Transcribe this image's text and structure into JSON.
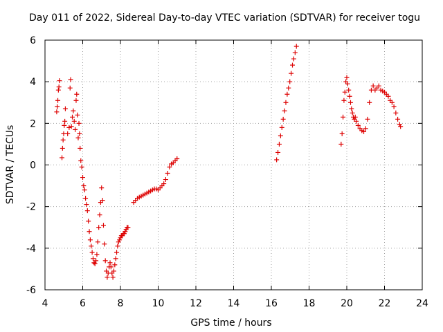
{
  "chart_data": {
    "type": "scatter",
    "title": "Day 011 of 2022, Sidereal Day-to-day VTEC variation (SDTVAR) for receiver togu",
    "xlabel": "GPS time / hours",
    "ylabel": "SDTVAR / TECUs",
    "xlim": [
      4,
      24
    ],
    "ylim": [
      -6,
      6
    ],
    "xticks": [
      4,
      6,
      8,
      10,
      12,
      14,
      16,
      18,
      20,
      22,
      24
    ],
    "yticks": [
      -6,
      -4,
      -2,
      0,
      2,
      4,
      6
    ],
    "xtick_labels": [
      "4",
      "6",
      "8",
      "10",
      "12",
      "14",
      "16",
      "18",
      "20",
      "22",
      "24"
    ],
    "ytick_labels": [
      "-6",
      "-4",
      "-2",
      "0",
      "2",
      "4",
      "6"
    ],
    "grid": true,
    "marker": "+",
    "colors": {
      "series": "#dd0000",
      "grid": "#a0a0a0",
      "axis": "#000000"
    },
    "series": [
      {
        "name": "SDTVAR",
        "points": [
          [
            4.62,
            2.55
          ],
          [
            4.65,
            2.8
          ],
          [
            4.68,
            3.1
          ],
          [
            4.71,
            3.6
          ],
          [
            4.74,
            3.75
          ],
          [
            4.77,
            4.05
          ],
          [
            4.9,
            0.35
          ],
          [
            4.93,
            0.8
          ],
          [
            4.96,
            1.2
          ],
          [
            4.99,
            1.5
          ],
          [
            5.02,
            1.9
          ],
          [
            5.05,
            2.1
          ],
          [
            5.08,
            2.7
          ],
          [
            5.2,
            1.5
          ],
          [
            5.28,
            1.8
          ],
          [
            5.33,
            3.7
          ],
          [
            5.36,
            4.1
          ],
          [
            5.4,
            1.85
          ],
          [
            5.45,
            2.3
          ],
          [
            5.5,
            2.6
          ],
          [
            5.55,
            2.1
          ],
          [
            5.6,
            1.7
          ],
          [
            5.65,
            3.1
          ],
          [
            5.68,
            3.4
          ],
          [
            5.72,
            2.4
          ],
          [
            5.76,
            1.3
          ],
          [
            5.8,
            2.0
          ],
          [
            5.83,
            1.5
          ],
          [
            5.86,
            0.8
          ],
          [
            5.9,
            0.2
          ],
          [
            5.95,
            -0.1
          ],
          [
            6.0,
            -0.6
          ],
          [
            6.05,
            -1.0
          ],
          [
            6.1,
            -1.2
          ],
          [
            6.15,
            -1.6
          ],
          [
            6.2,
            -1.9
          ],
          [
            6.25,
            -2.2
          ],
          [
            6.3,
            -2.7
          ],
          [
            6.35,
            -3.2
          ],
          [
            6.4,
            -3.6
          ],
          [
            6.45,
            -3.9
          ],
          [
            6.5,
            -4.2
          ],
          [
            6.55,
            -4.5
          ],
          [
            6.6,
            -4.7
          ],
          [
            6.65,
            -4.75
          ],
          [
            6.7,
            -4.6
          ],
          [
            6.75,
            -4.3
          ],
          [
            6.8,
            -3.7
          ],
          [
            6.85,
            -3.0
          ],
          [
            6.9,
            -2.4
          ],
          [
            6.95,
            -1.8
          ],
          [
            7.0,
            -1.1
          ],
          [
            7.05,
            -1.7
          ],
          [
            7.1,
            -2.9
          ],
          [
            7.15,
            -3.8
          ],
          [
            7.2,
            -4.6
          ],
          [
            7.25,
            -5.1
          ],
          [
            7.3,
            -5.4
          ],
          [
            7.35,
            -5.2
          ],
          [
            7.4,
            -4.9
          ],
          [
            7.45,
            -4.7
          ],
          [
            7.5,
            -4.9
          ],
          [
            7.55,
            -5.2
          ],
          [
            7.6,
            -5.4
          ],
          [
            7.65,
            -5.1
          ],
          [
            7.7,
            -4.8
          ],
          [
            7.75,
            -4.5
          ],
          [
            7.8,
            -4.2
          ],
          [
            7.85,
            -3.9
          ],
          [
            7.9,
            -3.7
          ],
          [
            7.95,
            -3.6
          ],
          [
            8.0,
            -3.5
          ],
          [
            8.05,
            -3.4
          ],
          [
            8.1,
            -3.4
          ],
          [
            8.15,
            -3.3
          ],
          [
            8.2,
            -3.3
          ],
          [
            8.25,
            -3.2
          ],
          [
            8.3,
            -3.1
          ],
          [
            8.35,
            -3.0
          ],
          [
            8.4,
            -3.0
          ],
          [
            8.7,
            -1.8
          ],
          [
            8.8,
            -1.7
          ],
          [
            8.9,
            -1.6
          ],
          [
            9.0,
            -1.55
          ],
          [
            9.1,
            -1.5
          ],
          [
            9.2,
            -1.45
          ],
          [
            9.3,
            -1.4
          ],
          [
            9.4,
            -1.35
          ],
          [
            9.5,
            -1.3
          ],
          [
            9.6,
            -1.25
          ],
          [
            9.7,
            -1.2
          ],
          [
            9.8,
            -1.15
          ],
          [
            9.9,
            -1.15
          ],
          [
            10.0,
            -1.2
          ],
          [
            10.1,
            -1.1
          ],
          [
            10.2,
            -1.0
          ],
          [
            10.3,
            -0.9
          ],
          [
            10.4,
            -0.7
          ],
          [
            10.5,
            -0.4
          ],
          [
            10.6,
            -0.1
          ],
          [
            10.7,
            0.05
          ],
          [
            10.8,
            0.1
          ],
          [
            10.9,
            0.2
          ],
          [
            11.0,
            0.3
          ],
          [
            16.28,
            0.25
          ],
          [
            16.35,
            0.6
          ],
          [
            16.42,
            1.0
          ],
          [
            16.49,
            1.4
          ],
          [
            16.56,
            1.8
          ],
          [
            16.63,
            2.2
          ],
          [
            16.7,
            2.6
          ],
          [
            16.77,
            3.0
          ],
          [
            16.84,
            3.4
          ],
          [
            16.91,
            3.7
          ],
          [
            16.98,
            4.0
          ],
          [
            17.05,
            4.4
          ],
          [
            17.12,
            4.8
          ],
          [
            17.19,
            5.1
          ],
          [
            17.26,
            5.4
          ],
          [
            17.33,
            5.7
          ],
          [
            19.7,
            1.0
          ],
          [
            19.75,
            1.5
          ],
          [
            19.8,
            2.3
          ],
          [
            19.85,
            3.1
          ],
          [
            19.9,
            3.5
          ],
          [
            19.95,
            4.0
          ],
          [
            20.0,
            4.2
          ],
          [
            20.05,
            3.9
          ],
          [
            20.1,
            3.6
          ],
          [
            20.15,
            3.3
          ],
          [
            20.2,
            3.0
          ],
          [
            20.25,
            2.7
          ],
          [
            20.3,
            2.5
          ],
          [
            20.35,
            2.3
          ],
          [
            20.4,
            2.2
          ],
          [
            20.45,
            2.3
          ],
          [
            20.5,
            2.1
          ],
          [
            20.6,
            1.9
          ],
          [
            20.7,
            1.75
          ],
          [
            20.8,
            1.65
          ],
          [
            20.9,
            1.6
          ],
          [
            21.0,
            1.75
          ],
          [
            21.1,
            2.2
          ],
          [
            21.2,
            3.0
          ],
          [
            21.3,
            3.6
          ],
          [
            21.4,
            3.8
          ],
          [
            21.5,
            3.6
          ],
          [
            21.6,
            3.7
          ],
          [
            21.7,
            3.8
          ],
          [
            21.8,
            3.6
          ],
          [
            21.9,
            3.55
          ],
          [
            22.0,
            3.5
          ],
          [
            22.1,
            3.4
          ],
          [
            22.2,
            3.3
          ],
          [
            22.3,
            3.1
          ],
          [
            22.4,
            3.0
          ],
          [
            22.5,
            2.8
          ],
          [
            22.6,
            2.5
          ],
          [
            22.7,
            2.2
          ],
          [
            22.8,
            1.95
          ],
          [
            22.85,
            1.85
          ]
        ]
      }
    ]
  }
}
